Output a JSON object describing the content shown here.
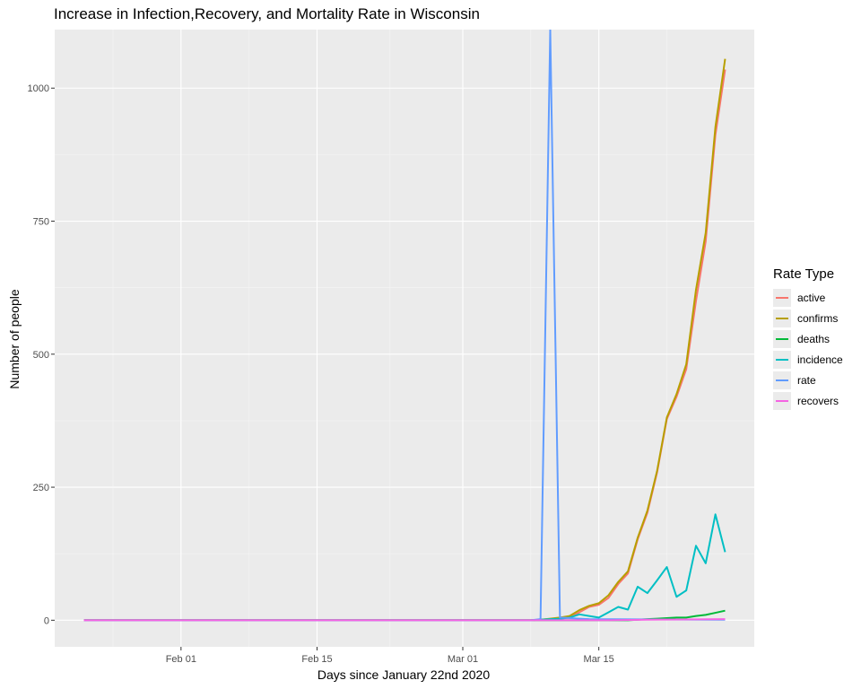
{
  "title": "Increase in Infection,Recovery, and Mortality Rate in Wisconsin",
  "chart_data": {
    "type": "line",
    "title": "Increase in Infection,Recovery, and Mortality Rate in Wisconsin",
    "xlabel": "Days since January 22nd 2020",
    "ylabel": "Number of people",
    "xlim": [
      "2020-01-19",
      "2020-03-31"
    ],
    "ylim": [
      -50,
      1110
    ],
    "x_ticks": [
      {
        "date": "2020-02-01",
        "label": "Feb 01"
      },
      {
        "date": "2020-02-15",
        "label": "Feb 15"
      },
      {
        "date": "2020-03-01",
        "label": "Mar 01"
      },
      {
        "date": "2020-03-15",
        "label": "Mar 15"
      }
    ],
    "y_ticks": [
      0,
      250,
      500,
      750,
      1000
    ],
    "grid": true,
    "legend": {
      "title": "Rate Type",
      "position": "right"
    },
    "series": [
      {
        "name": "active",
        "color": "#F8766D",
        "points": [
          [
            "2020-01-22",
            0
          ],
          [
            "2020-03-08",
            0
          ],
          [
            "2020-03-09",
            1
          ],
          [
            "2020-03-10",
            2
          ],
          [
            "2020-03-11",
            3
          ],
          [
            "2020-03-12",
            5
          ],
          [
            "2020-03-13",
            15
          ],
          [
            "2020-03-14",
            25
          ],
          [
            "2020-03-15",
            29
          ],
          [
            "2020-03-16",
            42
          ],
          [
            "2020-03-17",
            68
          ],
          [
            "2020-03-18",
            88
          ],
          [
            "2020-03-19",
            152
          ],
          [
            "2020-03-20",
            202
          ],
          [
            "2020-03-21",
            278
          ],
          [
            "2020-03-22",
            378
          ],
          [
            "2020-03-23",
            420
          ],
          [
            "2020-03-24",
            472
          ],
          [
            "2020-03-25",
            600
          ],
          [
            "2020-03-26",
            712
          ],
          [
            "2020-03-27",
            912
          ],
          [
            "2020-03-28",
            1035
          ]
        ]
      },
      {
        "name": "confirms",
        "color": "#B79F00",
        "points": [
          [
            "2020-01-22",
            0
          ],
          [
            "2020-03-08",
            0
          ],
          [
            "2020-03-09",
            1
          ],
          [
            "2020-03-10",
            3
          ],
          [
            "2020-03-11",
            5
          ],
          [
            "2020-03-12",
            8
          ],
          [
            "2020-03-13",
            19
          ],
          [
            "2020-03-14",
            27
          ],
          [
            "2020-03-15",
            32
          ],
          [
            "2020-03-16",
            47
          ],
          [
            "2020-03-17",
            72
          ],
          [
            "2020-03-18",
            92
          ],
          [
            "2020-03-19",
            155
          ],
          [
            "2020-03-20",
            206
          ],
          [
            "2020-03-21",
            281
          ],
          [
            "2020-03-22",
            381
          ],
          [
            "2020-03-23",
            425
          ],
          [
            "2020-03-24",
            481
          ],
          [
            "2020-03-25",
            621
          ],
          [
            "2020-03-26",
            728
          ],
          [
            "2020-03-27",
            927
          ],
          [
            "2020-03-28",
            1055
          ]
        ]
      },
      {
        "name": "deaths",
        "color": "#00BA38",
        "points": [
          [
            "2020-01-22",
            0
          ],
          [
            "2020-03-18",
            0
          ],
          [
            "2020-03-19",
            1
          ],
          [
            "2020-03-20",
            2
          ],
          [
            "2020-03-21",
            3
          ],
          [
            "2020-03-22",
            4
          ],
          [
            "2020-03-23",
            5
          ],
          [
            "2020-03-24",
            5
          ],
          [
            "2020-03-25",
            8
          ],
          [
            "2020-03-26",
            10
          ],
          [
            "2020-03-27",
            14
          ],
          [
            "2020-03-28",
            18
          ]
        ]
      },
      {
        "name": "incidence",
        "color": "#00BFC4",
        "points": [
          [
            "2020-01-22",
            0
          ],
          [
            "2020-03-08",
            0
          ],
          [
            "2020-03-09",
            1
          ],
          [
            "2020-03-10",
            2
          ],
          [
            "2020-03-11",
            3
          ],
          [
            "2020-03-12",
            5
          ],
          [
            "2020-03-13",
            11
          ],
          [
            "2020-03-14",
            8
          ],
          [
            "2020-03-15",
            5
          ],
          [
            "2020-03-16",
            15
          ],
          [
            "2020-03-17",
            25
          ],
          [
            "2020-03-18",
            20
          ],
          [
            "2020-03-19",
            63
          ],
          [
            "2020-03-20",
            51
          ],
          [
            "2020-03-21",
            75
          ],
          [
            "2020-03-22",
            100
          ],
          [
            "2020-03-23",
            44
          ],
          [
            "2020-03-24",
            56
          ],
          [
            "2020-03-25",
            140
          ],
          [
            "2020-03-26",
            107
          ],
          [
            "2020-03-27",
            199
          ],
          [
            "2020-03-28",
            128
          ]
        ]
      },
      {
        "name": "rate",
        "color": "#619CFF",
        "points": [
          [
            "2020-01-22",
            0
          ],
          [
            "2020-03-08",
            0
          ],
          [
            "2020-03-09",
            2
          ],
          [
            "2020-03-10",
            1110
          ],
          [
            "2020-03-11",
            5
          ],
          [
            "2020-03-12",
            4
          ],
          [
            "2020-03-13",
            3
          ],
          [
            "2020-03-14",
            2
          ],
          [
            "2020-03-28",
            1
          ]
        ]
      },
      {
        "name": "recovers",
        "color": "#F564E3",
        "points": [
          [
            "2020-01-22",
            0
          ],
          [
            "2020-03-11",
            0
          ],
          [
            "2020-03-16",
            0
          ],
          [
            "2020-03-20",
            1
          ],
          [
            "2020-03-28",
            2
          ]
        ]
      }
    ]
  }
}
